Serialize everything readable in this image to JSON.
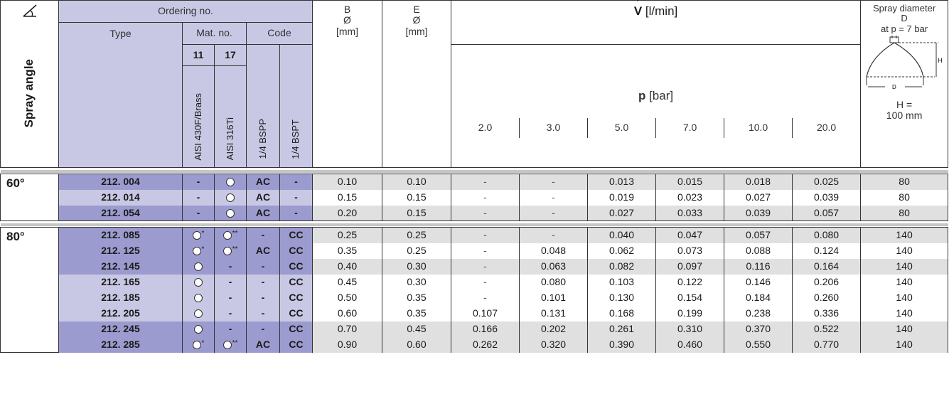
{
  "header": {
    "ordering_no": "Ordering no.",
    "type": "Type",
    "mat_no": "Mat. no.",
    "code": "Code",
    "mat_11": "11",
    "mat_17": "17",
    "mat_11_name": "AISI 430F/Brass",
    "mat_17_name": "AISI 316Ti",
    "code_bspp": "1/4 BSPP",
    "code_bspt": "1/4 BSPT",
    "b_label": "B",
    "b_sym": "Ø",
    "b_unit": "[mm]",
    "e_label": "E",
    "e_sym": "Ø",
    "e_unit": "[mm]",
    "v_label": "V",
    "v_unit": "[l/min]",
    "p_label": "p",
    "p_unit": "[bar]",
    "pressures": [
      "2.0",
      "3.0",
      "5.0",
      "7.0",
      "10.0",
      "20.0"
    ],
    "spray_angle": "Spray angle",
    "spray_diam_1": "Spray diameter",
    "spray_diam_2": "D",
    "spray_diam_3": "at p = 7 bar",
    "diagram_h": "H",
    "diagram_d": "D",
    "h_eq": "H =",
    "h_val": "100 mm"
  },
  "groups": [
    {
      "angle": "60°",
      "rows": [
        {
          "type": "212. 004",
          "m11": "-",
          "m17": "o",
          "bspp": "AC",
          "bspt": "-",
          "b": "0.10",
          "e": "0.10",
          "p": [
            "-",
            "-",
            "0.013",
            "0.015",
            "0.018",
            "0.025"
          ],
          "d": "80",
          "style": "dark",
          "shade": "grey"
        },
        {
          "type": "212. 014",
          "m11": "-",
          "m17": "o",
          "bspp": "AC",
          "bspt": "-",
          "b": "0.15",
          "e": "0.15",
          "p": [
            "-",
            "-",
            "0.019",
            "0.023",
            "0.027",
            "0.039"
          ],
          "d": "80",
          "style": "light",
          "shade": "white"
        },
        {
          "type": "212. 054",
          "m11": "-",
          "m17": "o",
          "bspp": "AC",
          "bspt": "-",
          "b": "0.20",
          "e": "0.15",
          "p": [
            "-",
            "-",
            "0.027",
            "0.033",
            "0.039",
            "0.057"
          ],
          "d": "80",
          "style": "dark",
          "shade": "grey"
        }
      ]
    },
    {
      "angle": "80°",
      "rows": [
        {
          "type": "212. 085",
          "m11": "o*",
          "m17": "o**",
          "bspp": "-",
          "bspt": "CC",
          "b": "0.25",
          "e": "0.25",
          "p": [
            "-",
            "-",
            "0.040",
            "0.047",
            "0.057",
            "0.080"
          ],
          "d": "140",
          "style": "dark",
          "shade": "grey"
        },
        {
          "type": "212. 125",
          "m11": "o*",
          "m17": "o**",
          "bspp": "AC",
          "bspt": "CC",
          "b": "0.35",
          "e": "0.25",
          "p": [
            "-",
            "0.048",
            "0.062",
            "0.073",
            "0.088",
            "0.124"
          ],
          "d": "140",
          "style": "dark",
          "shade": "white"
        },
        {
          "type": "212. 145",
          "m11": "o",
          "m17": "-",
          "bspp": "-",
          "bspt": "CC",
          "b": "0.40",
          "e": "0.30",
          "p": [
            "-",
            "0.063",
            "0.082",
            "0.097",
            "0.116",
            "0.164"
          ],
          "d": "140",
          "style": "dark",
          "shade": "grey"
        },
        {
          "type": "212. 165",
          "m11": "o",
          "m17": "-",
          "bspp": "-",
          "bspt": "CC",
          "b": "0.45",
          "e": "0.30",
          "p": [
            "-",
            "0.080",
            "0.103",
            "0.122",
            "0.146",
            "0.206"
          ],
          "d": "140",
          "style": "light",
          "shade": "white"
        },
        {
          "type": "212. 185",
          "m11": "o",
          "m17": "-",
          "bspp": "-",
          "bspt": "CC",
          "b": "0.50",
          "e": "0.35",
          "p": [
            "-",
            "0.101",
            "0.130",
            "0.154",
            "0.184",
            "0.260"
          ],
          "d": "140",
          "style": "light",
          "shade": "white"
        },
        {
          "type": "212. 205",
          "m11": "o",
          "m17": "-",
          "bspp": "-",
          "bspt": "CC",
          "b": "0.60",
          "e": "0.35",
          "p": [
            "0.107",
            "0.131",
            "0.168",
            "0.199",
            "0.238",
            "0.336"
          ],
          "d": "140",
          "style": "light",
          "shade": "white"
        },
        {
          "type": "212. 245",
          "m11": "o",
          "m17": "-",
          "bspp": "-",
          "bspt": "CC",
          "b": "0.70",
          "e": "0.45",
          "p": [
            "0.166",
            "0.202",
            "0.261",
            "0.310",
            "0.370",
            "0.522"
          ],
          "d": "140",
          "style": "dark",
          "shade": "grey"
        },
        {
          "type": "212. 285",
          "m11": "o*",
          "m17": "o**",
          "bspp": "AC",
          "bspt": "CC",
          "b": "0.90",
          "e": "0.60",
          "p": [
            "0.262",
            "0.320",
            "0.390",
            "0.460",
            "0.550",
            "0.770"
          ],
          "d": "140",
          "style": "dark",
          "shade": "grey"
        }
      ]
    }
  ]
}
